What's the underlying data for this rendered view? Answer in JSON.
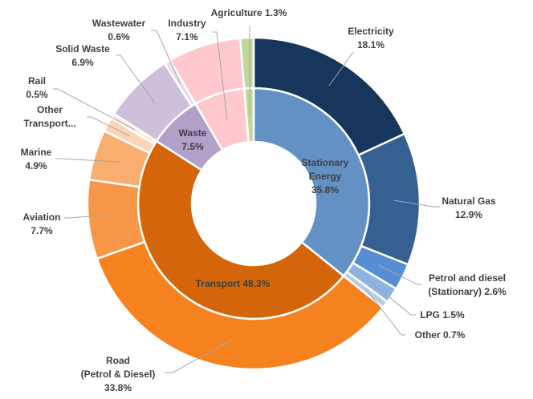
{
  "chart_data": {
    "type": "sunburst",
    "inner": [
      {
        "name": "Stationary Energy",
        "value": 35.8,
        "label": "35.8%",
        "color": "#6391c4"
      },
      {
        "name": "Transport",
        "value": 48.3,
        "label": "48.3%",
        "color": "#d4650a"
      },
      {
        "name": "Waste",
        "value": 7.5,
        "label": "7.5%",
        "color": "#b1a0c7"
      },
      {
        "name": "Industry",
        "value": 7.1,
        "color": "#ffc7ce"
      },
      {
        "name": "Agriculture",
        "value": 1.3,
        "color": "#c4d79b"
      }
    ],
    "outer": [
      {
        "name": "Electricity",
        "value": 18.1,
        "label": "18.1%",
        "color": "#16365c"
      },
      {
        "name": "Natural Gas",
        "value": 12.9,
        "label": "12.9%",
        "color": "#366092"
      },
      {
        "name": "Petrol and diesel (Stationary)",
        "value": 2.6,
        "label": "2.6%",
        "color": "#558ed5"
      },
      {
        "name": "LPG",
        "value": 1.5,
        "label": "1.5%",
        "color": "#8db3e2"
      },
      {
        "name": "Other",
        "value": 0.7,
        "label": "0.7%",
        "color": "#b9cde5"
      },
      {
        "name": "Road (Petrol & Diesel)",
        "value": 33.8,
        "label": "33.8%",
        "color": "#f5821f"
      },
      {
        "name": "Aviation",
        "value": 7.7,
        "label": "7.7%",
        "color": "#f79646"
      },
      {
        "name": "Marine",
        "value": 4.9,
        "label": "4.9%",
        "color": "#f9ad6e"
      },
      {
        "name": "Other Transport...",
        "value": 1.4,
        "color": "#fbd5b5"
      },
      {
        "name": "Rail",
        "value": 0.5,
        "label": "0.5%",
        "color": "#fde9d9"
      },
      {
        "name": "Solid Waste",
        "value": 6.9,
        "label": "6.9%",
        "color": "#ccc0da"
      },
      {
        "name": "Wastewater",
        "value": 0.6,
        "label": "0.6%",
        "color": "#e4dfec"
      },
      {
        "name": "Industry",
        "value": 7.1,
        "label": "7.1%",
        "color": "#ffc7ce"
      },
      {
        "name": "Agriculture",
        "value": 1.3,
        "label": "1.3%",
        "color": "#c4d79b"
      }
    ]
  }
}
